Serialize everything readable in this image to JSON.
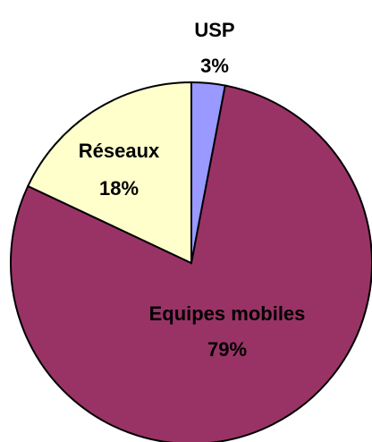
{
  "chart_data": {
    "type": "pie",
    "categories": [
      "USP",
      "Equipes mobiles",
      "Réseaux"
    ],
    "values": [
      3,
      79,
      18
    ],
    "value_labels": [
      "3%",
      "79%",
      "18%"
    ],
    "colors": [
      "#9999ff",
      "#993366",
      "#ffffcc"
    ]
  }
}
